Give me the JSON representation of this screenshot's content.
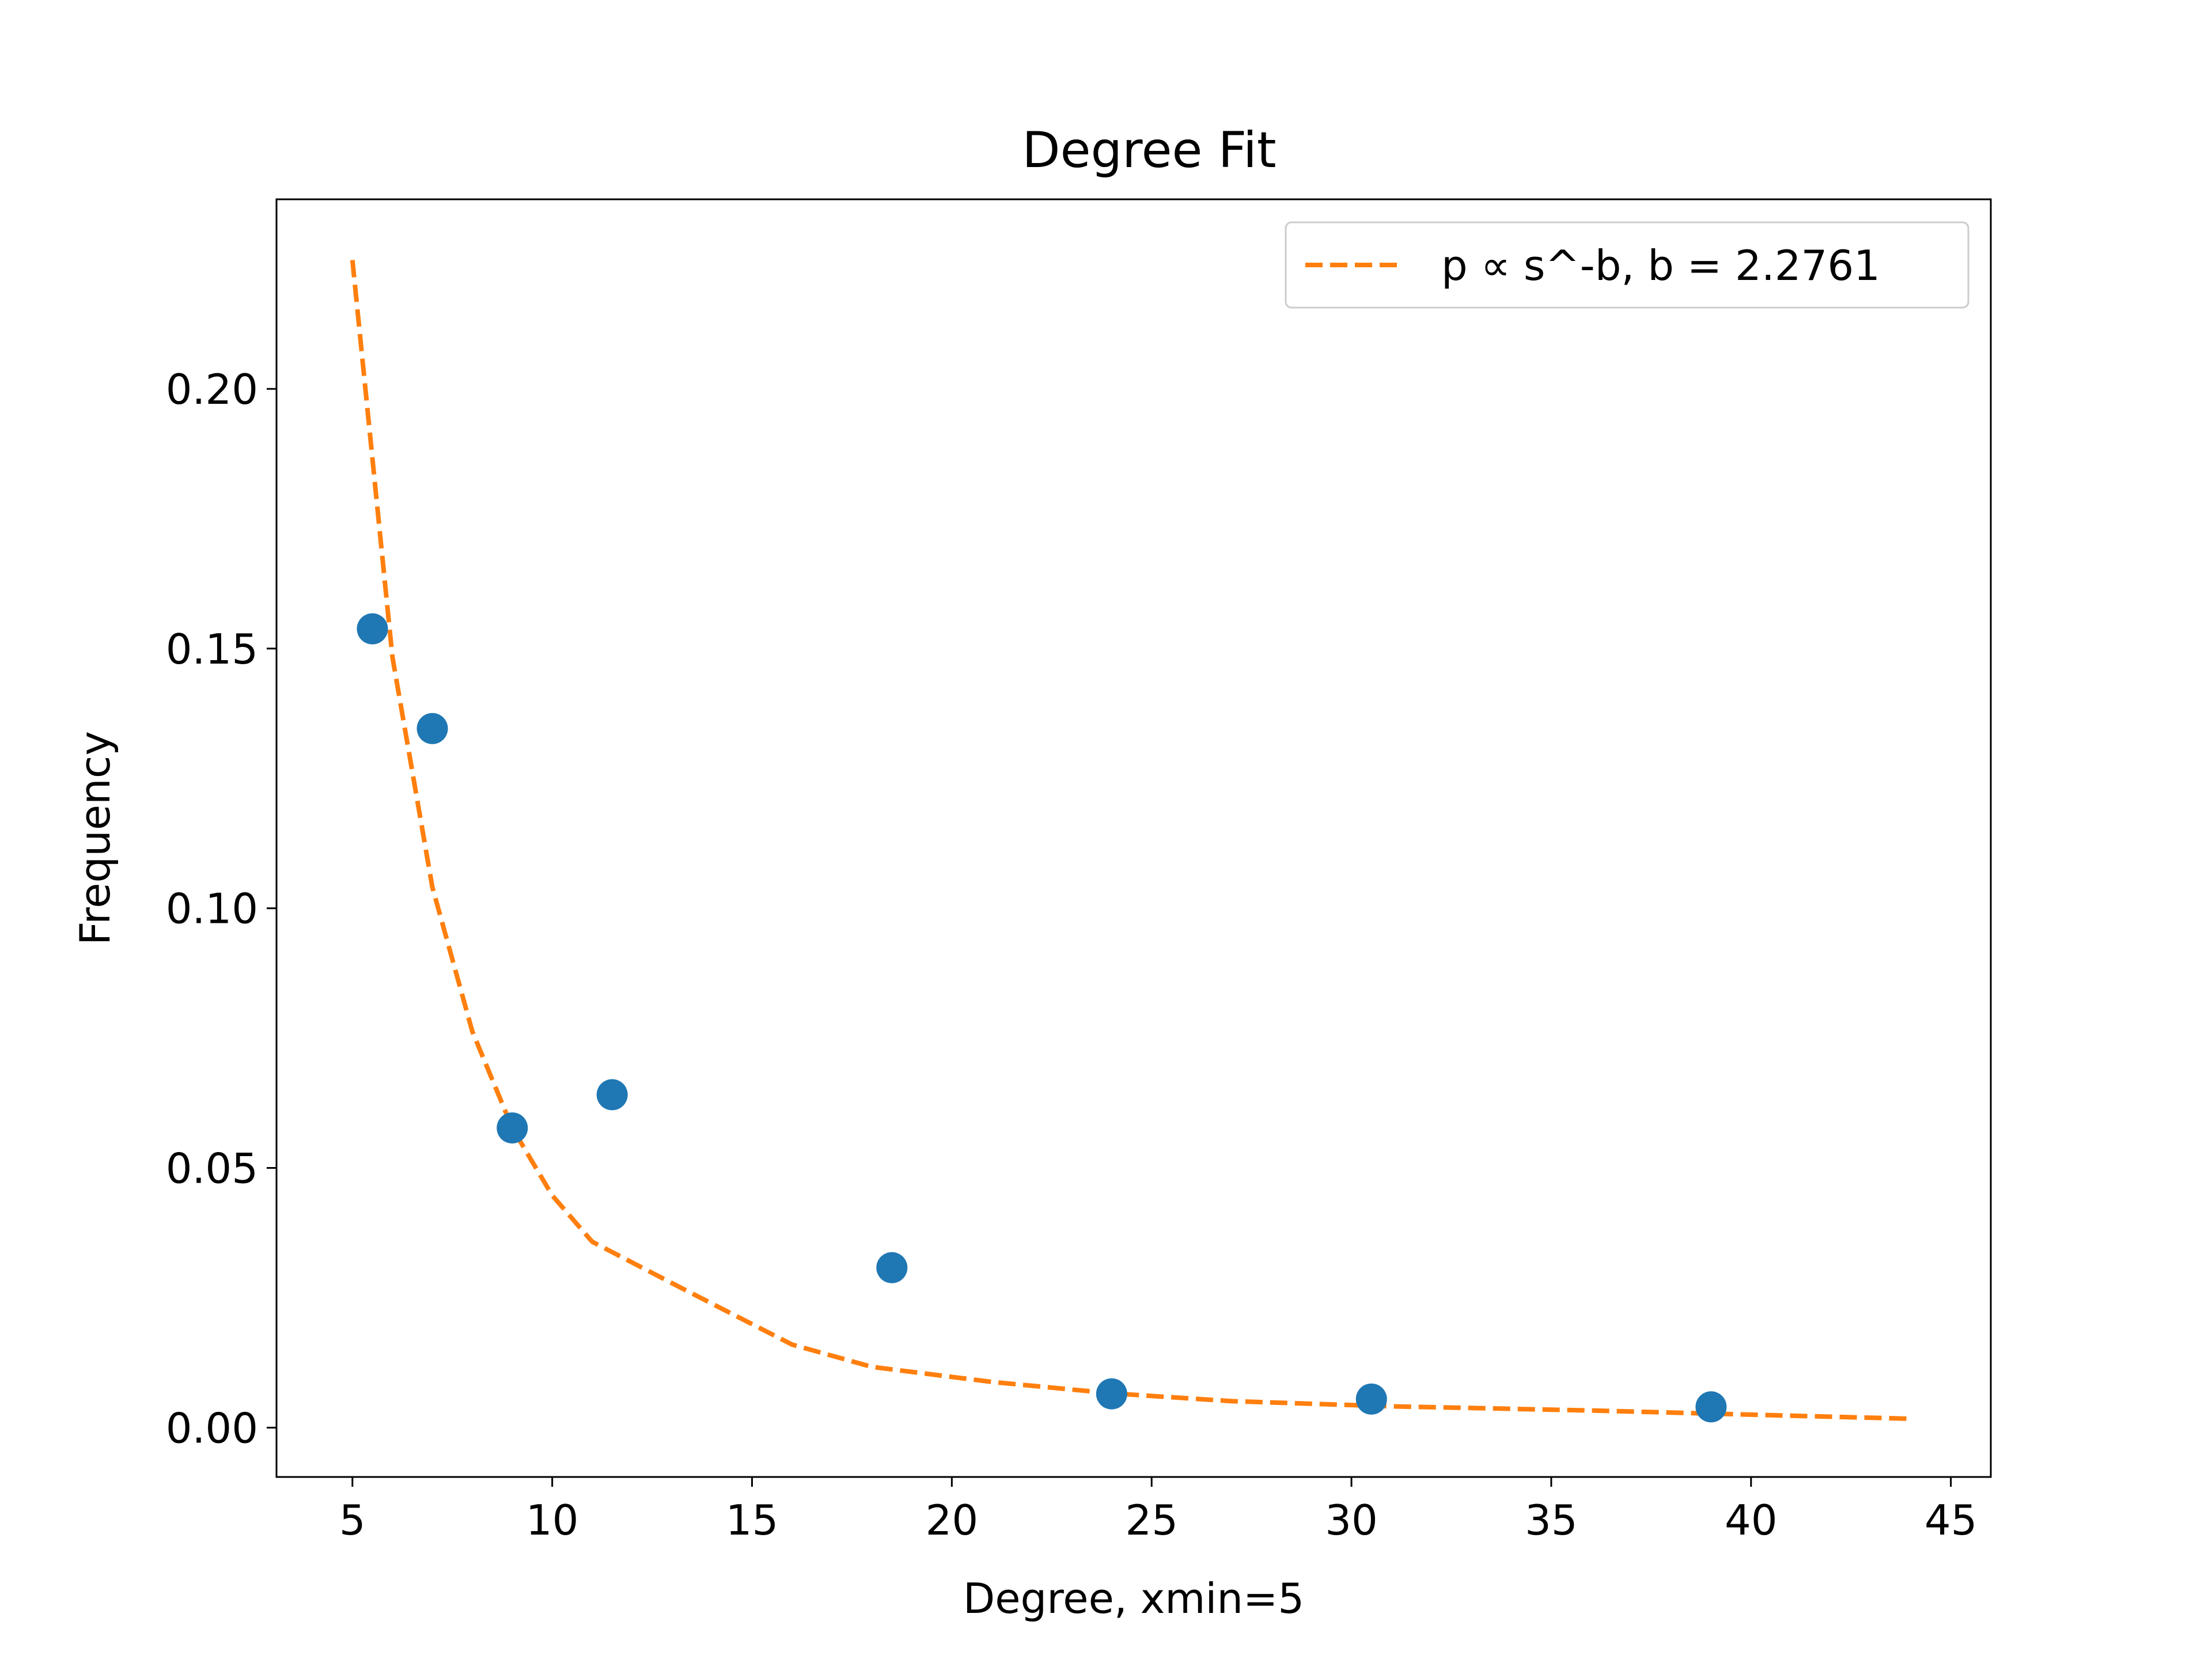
{
  "chart_data": {
    "type": "scatter",
    "title": "Degree Fit",
    "xlabel": "Degree, xmin=5",
    "ylabel": "Frequency",
    "xlim": [
      3.1,
      46.0
    ],
    "ylim": [
      -0.0095,
      0.2365
    ],
    "xticks": [
      5,
      10,
      15,
      20,
      25,
      30,
      35,
      40,
      45
    ],
    "xtick_labels": [
      "5",
      "10",
      "15",
      "20",
      "25",
      "30",
      "35",
      "40",
      "45"
    ],
    "yticks": [
      0.0,
      0.05,
      0.1,
      0.15,
      0.2
    ],
    "ytick_labels": [
      "0.00",
      "0.05",
      "0.10",
      "0.15",
      "0.20"
    ],
    "grid": false,
    "legend_position": "top-right",
    "series": [
      {
        "kind": "scatter",
        "marker": "circle",
        "color": "#1f77b4",
        "x": [
          5.5,
          7.0,
          9.0,
          11.5,
          18.5,
          24.0,
          30.5,
          39.0
        ],
        "y": [
          0.1538,
          0.1346,
          0.0577,
          0.0641,
          0.0308,
          0.0065,
          0.0055,
          0.004
        ]
      },
      {
        "name": "p ∝ s^-b, b = 2.2761",
        "kind": "line",
        "style": "dashed",
        "color": "#ff7f0e",
        "x": [
          5,
          6,
          7,
          8,
          9,
          10,
          11,
          13,
          16,
          18,
          21,
          24,
          27,
          31,
          36,
          41,
          44
        ],
        "y": [
          0.2248,
          0.1484,
          0.1041,
          0.0763,
          0.0577,
          0.0447,
          0.0358,
          0.0278,
          0.016,
          0.0117,
          0.0088,
          0.0066,
          0.0051,
          0.0041,
          0.0033,
          0.0023,
          0.0017
        ]
      }
    ]
  }
}
